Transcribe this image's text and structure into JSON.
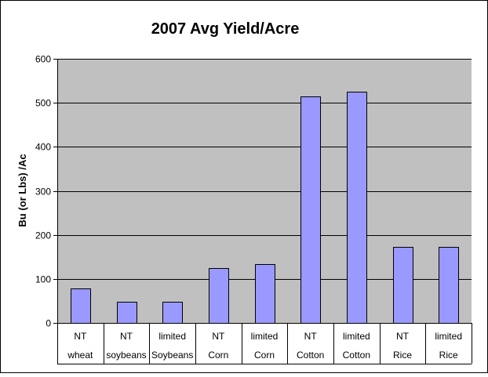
{
  "chart_data": {
    "type": "bar",
    "title": "2007 Avg Yield/Acre",
    "ylabel": "Bu (or Lbs) /Ac",
    "xlabel": "",
    "ylim": [
      0,
      600
    ],
    "yticks": [
      0,
      100,
      200,
      300,
      400,
      500,
      600
    ],
    "grid": true,
    "legend": "none",
    "categories": [
      {
        "line1": "NT",
        "line2": "wheat"
      },
      {
        "line1": "NT",
        "line2": "soybeans"
      },
      {
        "line1": "limited",
        "line2": "Soybeans"
      },
      {
        "line1": "NT",
        "line2": "Corn"
      },
      {
        "line1": "limited",
        "line2": "Corn"
      },
      {
        "line1": "NT",
        "line2": "Cotton"
      },
      {
        "line1": "limited",
        "line2": "Cotton"
      },
      {
        "line1": "NT",
        "line2": "Rice"
      },
      {
        "line1": "limited",
        "line2": "Rice"
      }
    ],
    "values": [
      78,
      48,
      48,
      124,
      133,
      515,
      525,
      172,
      172
    ],
    "colors": {
      "bar_fill": "#9999ff",
      "bar_stroke": "#000000",
      "plot_background": "#c0c0c0",
      "grid": "#000000"
    }
  }
}
